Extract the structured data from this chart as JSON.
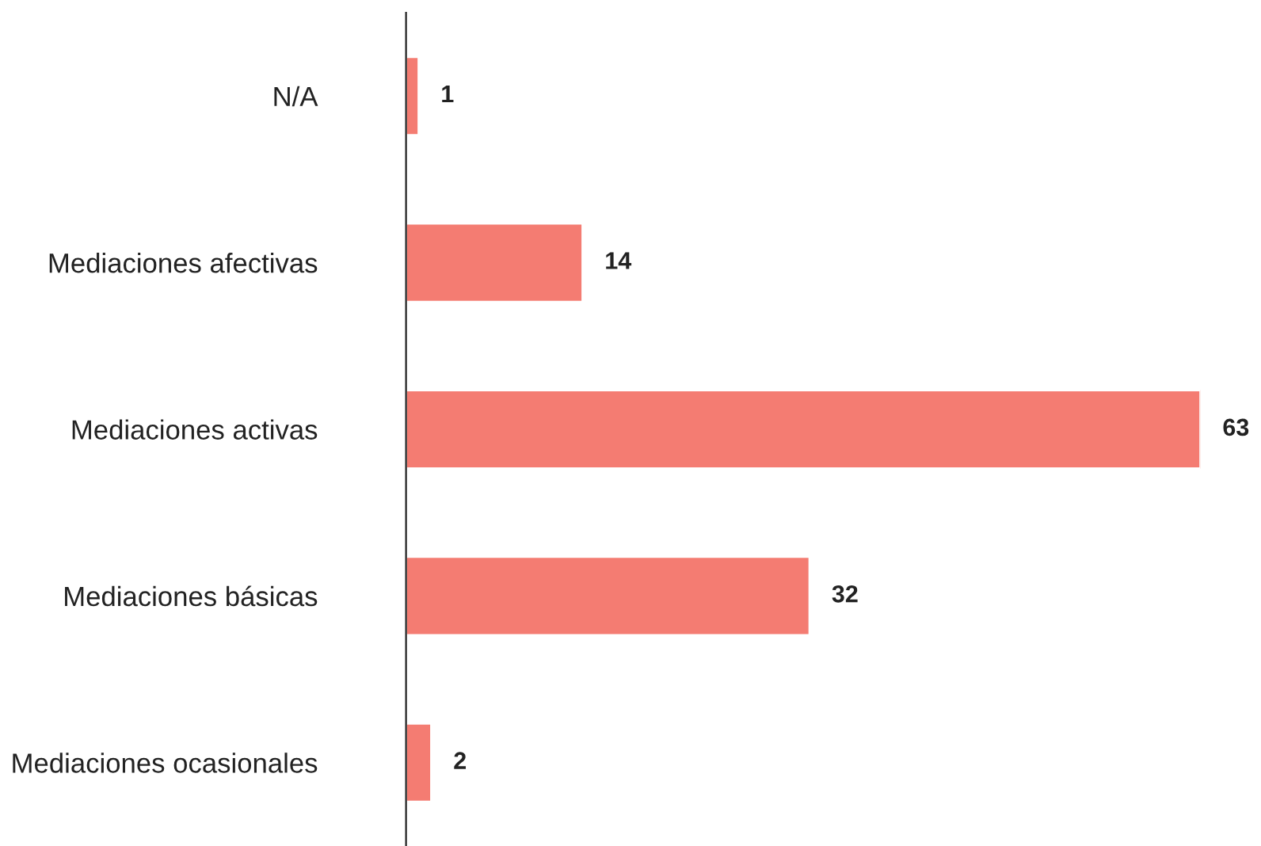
{
  "chart_data": {
    "type": "bar",
    "orientation": "horizontal",
    "categories": [
      "N/A",
      "Mediaciones afectivas",
      "Mediaciones activas",
      "Mediaciones básicas",
      "Mediaciones ocasionales"
    ],
    "values": [
      1,
      14,
      63,
      32,
      2
    ],
    "color": "#f47c72",
    "data_labels": true,
    "grid": false,
    "legend": false,
    "tick_labels": "y"
  }
}
